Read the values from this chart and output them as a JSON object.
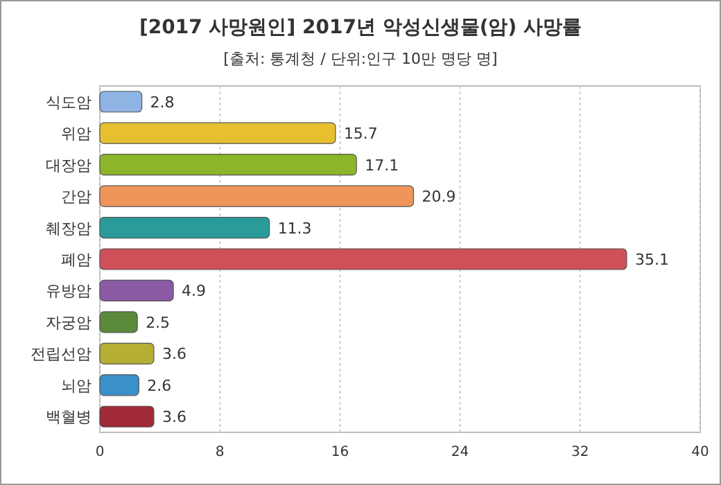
{
  "chart_data": {
    "type": "bar",
    "orientation": "horizontal",
    "title": "[2017 사망원인] 2017년 악성신생물(암) 사망률",
    "subtitle": "[출처: 통계청 / 단위:인구 10만 명당 명]",
    "categories": [
      "식도암",
      "위암",
      "대장암",
      "간암",
      "췌장암",
      "폐암",
      "유방암",
      "자궁암",
      "전립선암",
      "뇌암",
      "백혈병"
    ],
    "values": [
      2.8,
      15.7,
      17.1,
      20.9,
      11.3,
      35.1,
      4.9,
      2.5,
      3.6,
      2.6,
      3.6
    ],
    "colors": [
      "#8fb4e3",
      "#e6c02e",
      "#8cb52a",
      "#f0955a",
      "#2a9a9a",
      "#d0505a",
      "#8a5aa5",
      "#5a8a3a",
      "#b5b035",
      "#3a90c8",
      "#a02a35"
    ],
    "xlim": [
      0,
      40
    ],
    "xticks": [
      0,
      8,
      16,
      24,
      32,
      40
    ],
    "grid": "x",
    "data_labels": true
  }
}
